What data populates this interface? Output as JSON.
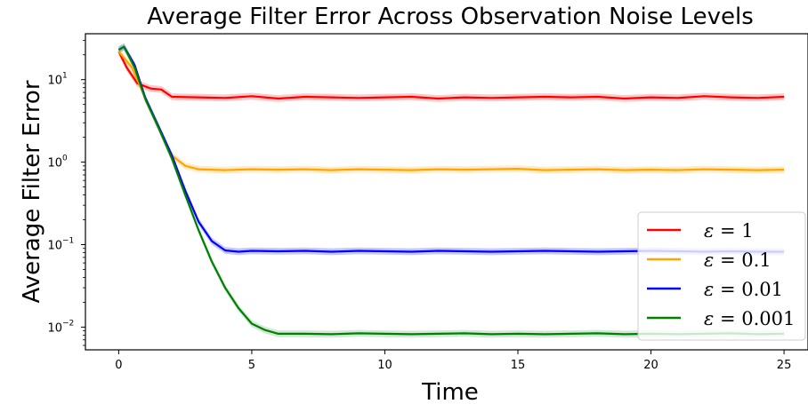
{
  "chart_data": {
    "type": "line",
    "title": "Average Filter Error Across Observation Noise Levels",
    "xlabel": "Time",
    "ylabel": "Average Filter Error",
    "xlim": [
      -1.25,
      25.9
    ],
    "ylim": [
      0.0053,
      36
    ],
    "yscale": "log",
    "x_ticks": [
      0,
      5,
      10,
      15,
      20,
      25
    ],
    "y_ticks": [
      {
        "value": 0.01,
        "base": "10",
        "exp": "−2"
      },
      {
        "value": 0.1,
        "base": "10",
        "exp": "−1"
      },
      {
        "value": 1,
        "base": "10",
        "exp": "0"
      },
      {
        "value": 10,
        "base": "10",
        "exp": "1"
      }
    ],
    "legend": {
      "placement": "lower-right"
    },
    "series": [
      {
        "name": "ε = 1",
        "name_parts": [
          "ε",
          "= 1"
        ],
        "color": "#ff0000",
        "band_color": "#ff0000",
        "points": [
          [
            0,
            22
          ],
          [
            0.3,
            14
          ],
          [
            0.7,
            9
          ],
          [
            1.2,
            7.8
          ],
          [
            1.6,
            7.6
          ],
          [
            2.0,
            6.2
          ],
          [
            3,
            6.1
          ],
          [
            4,
            6.0
          ],
          [
            5,
            6.3
          ],
          [
            6,
            5.9
          ],
          [
            7,
            6.2
          ],
          [
            8,
            6.1
          ],
          [
            9,
            6.0
          ],
          [
            10,
            6.1
          ],
          [
            11,
            6.2
          ],
          [
            12,
            5.9
          ],
          [
            13,
            6.1
          ],
          [
            14,
            6.0
          ],
          [
            15,
            6.1
          ],
          [
            16,
            6.2
          ],
          [
            17,
            6.1
          ],
          [
            18,
            6.2
          ],
          [
            19,
            5.9
          ],
          [
            20,
            6.1
          ],
          [
            21,
            6.0
          ],
          [
            22,
            6.3
          ],
          [
            23,
            6.1
          ],
          [
            24,
            6.0
          ],
          [
            25,
            6.2
          ]
        ]
      },
      {
        "name": "ε = 0.1",
        "name_parts": [
          "ε",
          "= 0.1"
        ],
        "color": "#ffa500",
        "band_color": "#ffa500",
        "points": [
          [
            0,
            22
          ],
          [
            0.5,
            14
          ],
          [
            1.0,
            6
          ],
          [
            1.5,
            2.6
          ],
          [
            2.0,
            1.2
          ],
          [
            2.5,
            0.9
          ],
          [
            3,
            0.82
          ],
          [
            4,
            0.8
          ],
          [
            5,
            0.82
          ],
          [
            6,
            0.81
          ],
          [
            7,
            0.82
          ],
          [
            8,
            0.8
          ],
          [
            9,
            0.82
          ],
          [
            10,
            0.81
          ],
          [
            11,
            0.8
          ],
          [
            12,
            0.82
          ],
          [
            13,
            0.81
          ],
          [
            14,
            0.82
          ],
          [
            15,
            0.83
          ],
          [
            16,
            0.8
          ],
          [
            17,
            0.81
          ],
          [
            18,
            0.82
          ],
          [
            19,
            0.8
          ],
          [
            20,
            0.81
          ],
          [
            21,
            0.8
          ],
          [
            22,
            0.82
          ],
          [
            23,
            0.81
          ],
          [
            24,
            0.8
          ],
          [
            25,
            0.81
          ]
        ]
      },
      {
        "name": "ε = 0.01",
        "name_parts": [
          "ε",
          "= 0.01"
        ],
        "color": "#0000ff",
        "band_color": "#0000ff",
        "points": [
          [
            0,
            23
          ],
          [
            0.2,
            25
          ],
          [
            0.6,
            15
          ],
          [
            1.0,
            6
          ],
          [
            1.5,
            2.7
          ],
          [
            2.0,
            1.2
          ],
          [
            2.5,
            0.45
          ],
          [
            3.0,
            0.19
          ],
          [
            3.5,
            0.11
          ],
          [
            4.0,
            0.085
          ],
          [
            4.5,
            0.082
          ],
          [
            5,
            0.084
          ],
          [
            6,
            0.083
          ],
          [
            7,
            0.084
          ],
          [
            8,
            0.082
          ],
          [
            9,
            0.084
          ],
          [
            10,
            0.083
          ],
          [
            11,
            0.082
          ],
          [
            12,
            0.084
          ],
          [
            13,
            0.083
          ],
          [
            14,
            0.082
          ],
          [
            15,
            0.083
          ],
          [
            16,
            0.084
          ],
          [
            17,
            0.083
          ],
          [
            18,
            0.082
          ],
          [
            19,
            0.083
          ],
          [
            20,
            0.084
          ],
          [
            21,
            0.083
          ],
          [
            22,
            0.082
          ],
          [
            23,
            0.083
          ],
          [
            24,
            0.082
          ],
          [
            25,
            0.082
          ]
        ]
      },
      {
        "name": "ε = 0.001",
        "name_parts": [
          "ε",
          "= 0.001"
        ],
        "color": "#008000",
        "band_color": "#2e9c44",
        "points": [
          [
            0,
            23
          ],
          [
            0.2,
            25
          ],
          [
            0.6,
            14
          ],
          [
            1.0,
            5.8
          ],
          [
            1.5,
            2.6
          ],
          [
            2.0,
            1.1
          ],
          [
            2.5,
            0.4
          ],
          [
            3.0,
            0.15
          ],
          [
            3.5,
            0.062
          ],
          [
            4.0,
            0.03
          ],
          [
            4.5,
            0.017
          ],
          [
            5.0,
            0.011
          ],
          [
            5.5,
            0.0092
          ],
          [
            6.0,
            0.0083
          ],
          [
            7,
            0.0083
          ],
          [
            8,
            0.0082
          ],
          [
            9,
            0.0084
          ],
          [
            10,
            0.0083
          ],
          [
            11,
            0.0082
          ],
          [
            12,
            0.0083
          ],
          [
            13,
            0.0084
          ],
          [
            14,
            0.0082
          ],
          [
            15,
            0.0083
          ],
          [
            16,
            0.0082
          ],
          [
            17,
            0.0083
          ],
          [
            18,
            0.0084
          ],
          [
            19,
            0.0082
          ],
          [
            20,
            0.0083
          ],
          [
            21,
            0.0082
          ],
          [
            22,
            0.0083
          ],
          [
            23,
            0.0084
          ],
          [
            24,
            0.0082
          ],
          [
            25,
            0.0083
          ]
        ]
      }
    ]
  }
}
